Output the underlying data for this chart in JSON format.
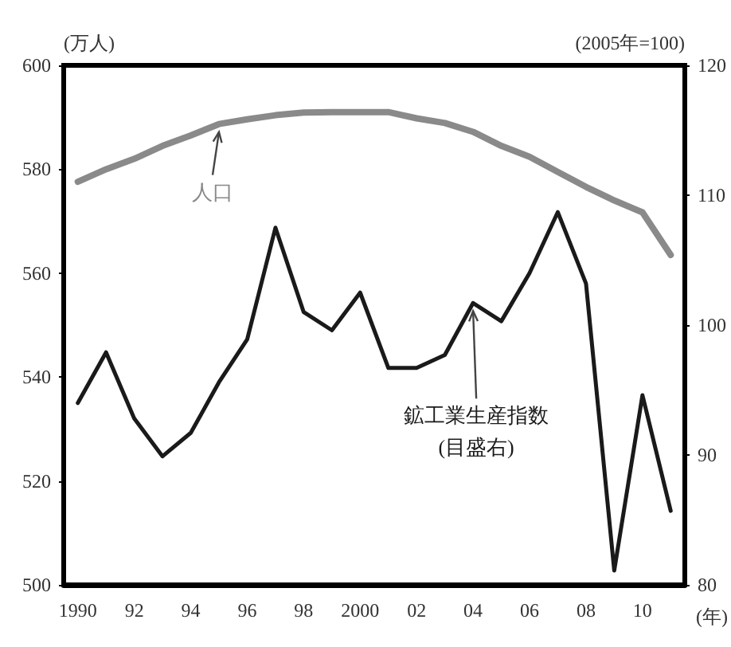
{
  "chart_data": {
    "type": "line",
    "xlabel": "(年)",
    "ylabel": "(万人)",
    "y2label": "(2005年=100)",
    "x": [
      1990,
      1991,
      1992,
      1993,
      1994,
      1995,
      1996,
      1997,
      1998,
      1999,
      2000,
      2001,
      2002,
      2003,
      2004,
      2005,
      2006,
      2007,
      2008,
      2009,
      2010,
      2011
    ],
    "series": [
      {
        "name": "人口",
        "color": "#8a8a8a",
        "values": [
          577.6,
          580,
          582,
          584.5,
          586.5,
          588.7,
          589.6,
          590.4,
          590.9,
          591,
          591,
          591,
          589.8,
          588.9,
          587.2,
          584.5,
          582.4,
          579.5,
          576.6,
          574,
          571.7,
          563.5
        ]
      },
      {
        "name": "鉱工業生産指数",
        "color": "#1a1a1a",
        "axis": "y2",
        "values": [
          94,
          97.9,
          92.8,
          89.9,
          91.7,
          95.6,
          98.9,
          107.5,
          101,
          99.6,
          102.5,
          96.7,
          96.7,
          97.7,
          101.7,
          100.3,
          104,
          108.7,
          103.2,
          81.1,
          94.6,
          85.7
        ]
      }
    ],
    "annotations": [
      "(目盛右)"
    ],
    "xlim": [
      1989.5,
      2011.5
    ],
    "xticks": [
      {
        "value": 1990,
        "label": "1990"
      },
      {
        "value": 1992,
        "label": "92"
      },
      {
        "value": 1994,
        "label": "94"
      },
      {
        "value": 1996,
        "label": "96"
      },
      {
        "value": 1998,
        "label": "98"
      },
      {
        "value": 2000,
        "label": "2000"
      },
      {
        "value": 2002,
        "label": "02"
      },
      {
        "value": 2004,
        "label": "04"
      },
      {
        "value": 2006,
        "label": "06"
      },
      {
        "value": 2008,
        "label": "08"
      },
      {
        "value": 2010,
        "label": "10"
      }
    ],
    "ylim": [
      500,
      600
    ],
    "yticks": [
      500,
      520,
      540,
      560,
      580,
      600
    ],
    "y2lim": [
      80,
      120
    ],
    "y2ticks": [
      80,
      90,
      100,
      110,
      120
    ],
    "grid": false,
    "legend": false,
    "marker": "none",
    "line_style": "solid"
  }
}
